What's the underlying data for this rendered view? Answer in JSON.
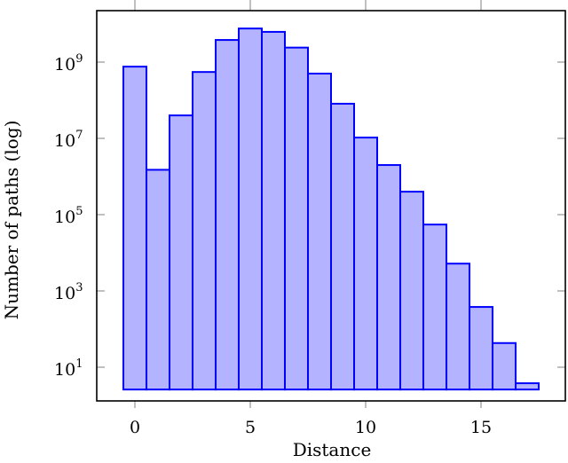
{
  "chart_data": {
    "type": "bar",
    "title": "",
    "xlabel": "Distance",
    "ylabel": "Number of paths (log)",
    "yscale": "log",
    "categories": [
      0,
      1,
      2,
      3,
      4,
      5,
      6,
      7,
      8,
      9,
      10,
      11,
      12,
      13,
      14,
      15,
      16,
      17
    ],
    "values": [
      760000000,
      1500000,
      40000000,
      550000000,
      3800000000,
      7600000000,
      6200000000,
      2400000000,
      500000000,
      81000000,
      10500000,
      2000000,
      400000,
      55000,
      5200,
      380,
      43,
      3.8
    ],
    "xlim": [
      -1.65,
      18.7
    ],
    "ylim_log10": [
      0.12,
      10.3
    ],
    "bar_base": 2.6,
    "x_ticks": [
      0,
      5,
      10,
      15
    ],
    "x_tick_labels": [
      "0",
      "5",
      "10",
      "15"
    ],
    "y_ticks_exp": [
      1,
      3,
      5,
      7,
      9
    ],
    "y_tick_labels": [
      {
        "base": "10",
        "exp": "1"
      },
      {
        "base": "10",
        "exp": "3"
      },
      {
        "base": "10",
        "exp": "5"
      },
      {
        "base": "10",
        "exp": "7"
      },
      {
        "base": "10",
        "exp": "9"
      }
    ],
    "grid": false,
    "legend": null,
    "colors": {
      "bar_fill": "#b3b3ff",
      "bar_stroke": "#0000ff",
      "axis": "#000000",
      "tick": "#808080"
    }
  }
}
